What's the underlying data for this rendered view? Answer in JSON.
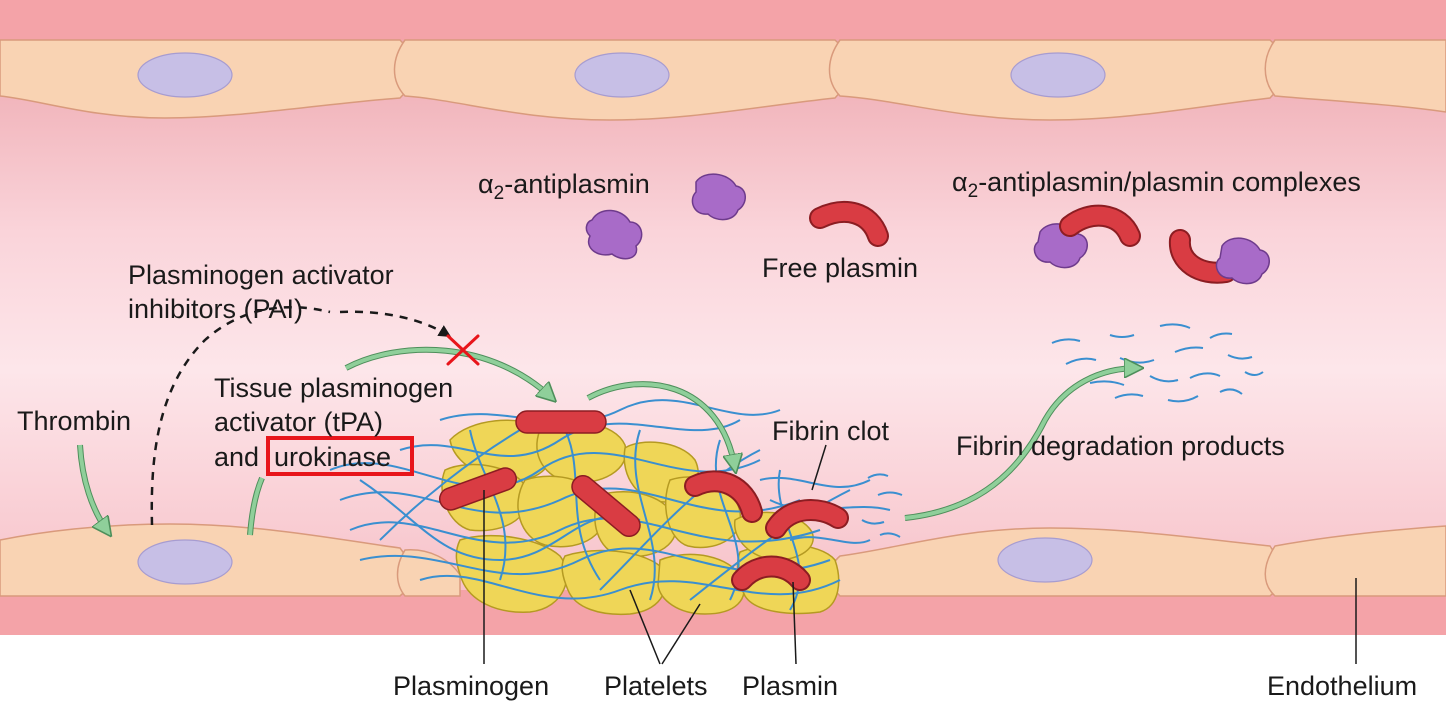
{
  "labels": {
    "thrombin": "Thrombin",
    "pai_line1": "Plasminogen activator",
    "pai_line2": "inhibitors (PAI)",
    "tpa_line1": "Tissue plasminogen",
    "tpa_line2": "activator (tPA)",
    "tpa_line3_prefix": "and",
    "urokinase": "urokinase",
    "alpha_symbol": "α",
    "alpha_subscript": "2",
    "antiplasmin_suffix": "-antiplasmin",
    "complexes_suffix": "-antiplasmin/plasmin complexes",
    "free_plasmin": "Free plasmin",
    "fibrin_clot": "Fibrin clot",
    "fibrin_degradation": "Fibrin degradation products",
    "plasminogen": "Plasminogen",
    "platelets": "Platelets",
    "plasmin": "Plasmin",
    "endothelium": "Endothelium"
  },
  "colors": {
    "vessel_wall": "#f4a3a8",
    "lumen": "#fbd9de",
    "endothelial_cell": "#f9d3b3",
    "nucleus": "#c7bfe6",
    "platelet": "#efd657",
    "plasmin": "#d93c43",
    "fibrin": "#3a8fd0",
    "antiplasmin": "#a86bc8",
    "arrow_green": "#8fcf9a",
    "highlight_box": "#e8151b"
  }
}
